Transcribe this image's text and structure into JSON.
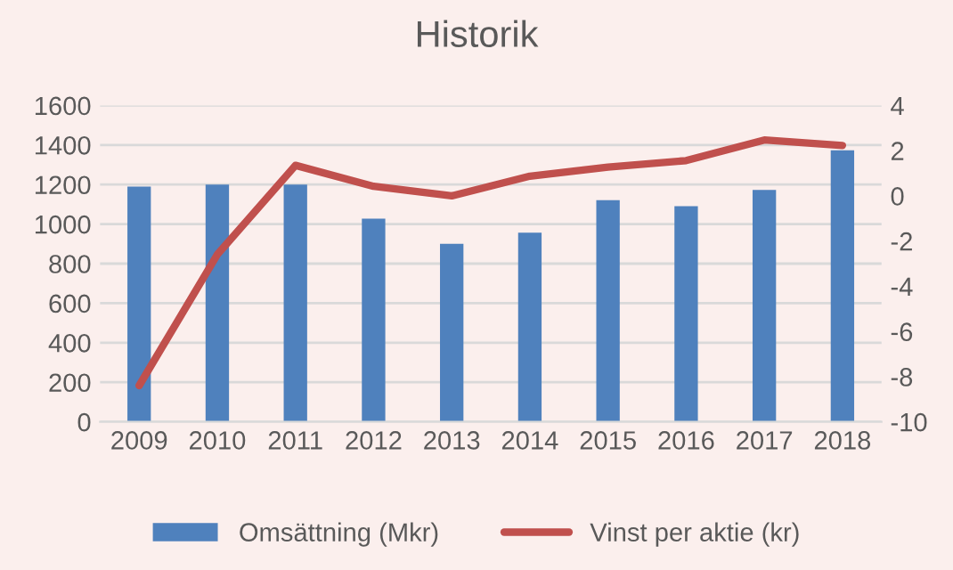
{
  "chart_data": {
    "type": "bar",
    "title": "Historik",
    "categories": [
      "2009",
      "2010",
      "2011",
      "2012",
      "2013",
      "2014",
      "2015",
      "2016",
      "2017",
      "2018"
    ],
    "series": [
      {
        "name": "Omsättning (Mkr)",
        "color": "#4f81bd",
        "values": [
          1190,
          1200,
          1200,
          1027,
          900,
          957,
          1121,
          1091,
          1173,
          1373
        ]
      },
      {
        "name": "Vinst per aktie (kr)",
        "type": "line",
        "axis": "y2",
        "color": "#c0504d",
        "values": [
          -8.4,
          -2.6,
          1.35,
          0.42,
          0,
          0.87,
          1.27,
          1.56,
          2.47,
          2.23
        ]
      }
    ],
    "ylim": [
      0,
      1600
    ],
    "yticks": [
      0,
      200,
      400,
      600,
      800,
      1000,
      1200,
      1400,
      1600
    ],
    "y2lim": [
      -10,
      4
    ],
    "y2ticks": [
      -10,
      -8,
      -6,
      -4,
      -2,
      0,
      2,
      4
    ],
    "grid": "y",
    "legend": "bottom"
  }
}
